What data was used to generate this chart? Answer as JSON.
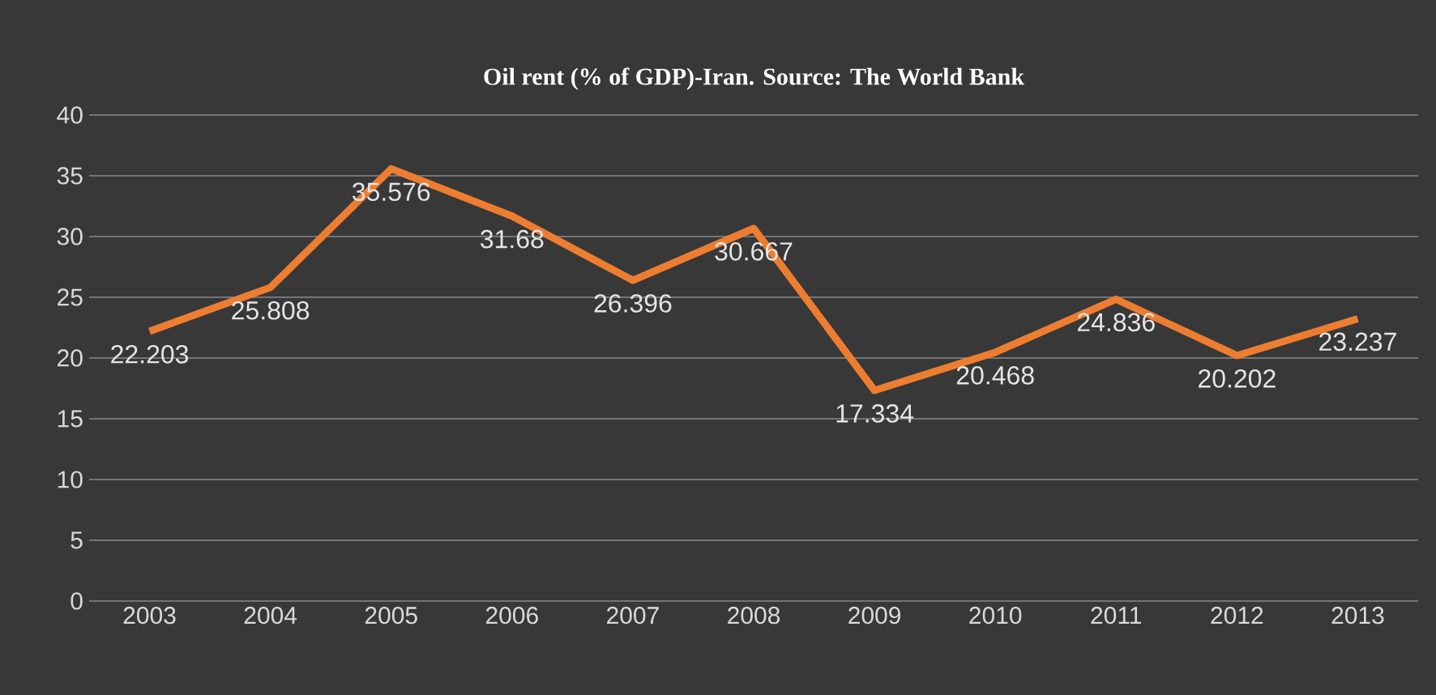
{
  "chart_data": {
    "type": "line",
    "title": "Oil rent (% of GDP)-Iran. Source: The World Bank",
    "categories": [
      "2003",
      "2004",
      "2005",
      "2006",
      "2007",
      "2008",
      "2009",
      "2010",
      "2011",
      "2012",
      "2013"
    ],
    "series": [
      {
        "color": "#ed7d31",
        "values": [
          22.203,
          25.808,
          35.576,
          31.68,
          26.396,
          30.667,
          17.334,
          20.468,
          24.836,
          20.202,
          23.237
        ]
      }
    ],
    "data_labels": true,
    "ylim": [
      0,
      40
    ],
    "yticks": [
      0,
      5,
      10,
      15,
      20,
      25,
      30,
      35,
      40
    ],
    "grid": "y",
    "marker": "none",
    "line_style": "solid"
  }
}
